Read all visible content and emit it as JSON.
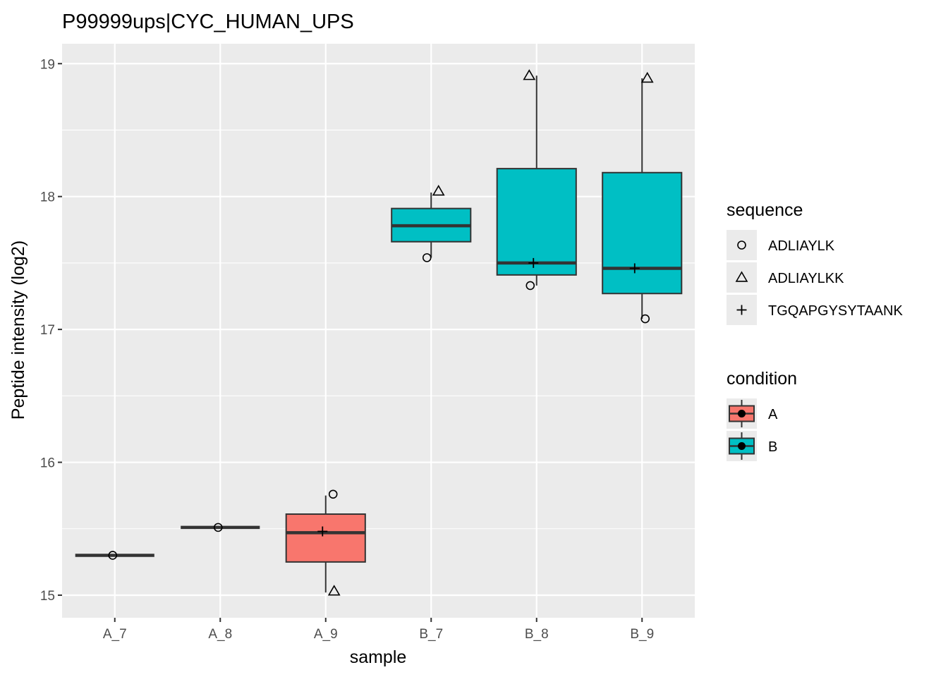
{
  "chart_data": {
    "type": "boxplot",
    "title": "P99999ups|CYC_HUMAN_UPS",
    "xlabel": "sample",
    "ylabel": "Peptide intensity (log2)",
    "categories": [
      "A_7",
      "A_8",
      "A_9",
      "B_7",
      "B_8",
      "B_9"
    ],
    "ylim": [
      14.83,
      19.15
    ],
    "yticks": [
      15,
      16,
      17,
      18,
      19
    ],
    "grid": true,
    "legend_position": "right",
    "boxes": [
      {
        "sample": "A_7",
        "condition": "A",
        "min": 15.3,
        "q1": 15.3,
        "median": 15.3,
        "q3": 15.3,
        "max": 15.3
      },
      {
        "sample": "A_8",
        "condition": "A",
        "min": 15.51,
        "q1": 15.51,
        "median": 15.51,
        "q3": 15.51,
        "max": 15.51
      },
      {
        "sample": "A_9",
        "condition": "A",
        "min": 15.02,
        "q1": 15.25,
        "median": 15.47,
        "q3": 15.61,
        "max": 15.75
      },
      {
        "sample": "B_7",
        "condition": "B",
        "min": 17.54,
        "q1": 17.66,
        "median": 17.78,
        "q3": 17.91,
        "max": 18.03
      },
      {
        "sample": "B_8",
        "condition": "B",
        "min": 17.33,
        "q1": 17.41,
        "median": 17.5,
        "q3": 18.21,
        "max": 18.91
      },
      {
        "sample": "B_9",
        "condition": "B",
        "min": 17.08,
        "q1": 17.27,
        "median": 17.46,
        "q3": 18.18,
        "max": 18.89
      }
    ],
    "points": [
      {
        "sample": "A_7",
        "sequence": "ADLIAYLK",
        "value": 15.3,
        "dx": -0.02
      },
      {
        "sample": "A_8",
        "sequence": "ADLIAYLK",
        "value": 15.51,
        "dx": -0.02
      },
      {
        "sample": "A_9",
        "sequence": "ADLIAYLK",
        "value": 15.76,
        "dx": 0.07
      },
      {
        "sample": "A_9",
        "sequence": "ADLIAYLKK",
        "value": 15.03,
        "dx": 0.08
      },
      {
        "sample": "A_9",
        "sequence": "TGQAPGYSYTAANK",
        "value": 15.48,
        "dx": -0.03
      },
      {
        "sample": "B_7",
        "sequence": "ADLIAYLK",
        "value": 17.54,
        "dx": -0.04
      },
      {
        "sample": "B_7",
        "sequence": "ADLIAYLKK",
        "value": 18.04,
        "dx": 0.07
      },
      {
        "sample": "B_8",
        "sequence": "ADLIAYLK",
        "value": 17.33,
        "dx": -0.06
      },
      {
        "sample": "B_8",
        "sequence": "ADLIAYLKK",
        "value": 18.91,
        "dx": -0.07
      },
      {
        "sample": "B_8",
        "sequence": "TGQAPGYSYTAANK",
        "value": 17.5,
        "dx": -0.03
      },
      {
        "sample": "B_9",
        "sequence": "ADLIAYLK",
        "value": 17.08,
        "dx": 0.03
      },
      {
        "sample": "B_9",
        "sequence": "ADLIAYLKK",
        "value": 18.89,
        "dx": 0.05
      },
      {
        "sample": "B_9",
        "sequence": "TGQAPGYSYTAANK",
        "value": 17.46,
        "dx": -0.07
      }
    ],
    "legend_sequence": {
      "title": "sequence",
      "items": [
        {
          "label": "ADLIAYLK",
          "shape": "circle"
        },
        {
          "label": "ADLIAYLKK",
          "shape": "triangle"
        },
        {
          "label": "TGQAPGYSYTAANK",
          "shape": "plus"
        }
      ]
    },
    "legend_condition": {
      "title": "condition",
      "items": [
        {
          "label": "A",
          "color": "#F8766D"
        },
        {
          "label": "B",
          "color": "#00BFC4"
        }
      ]
    },
    "colors": {
      "panel_bg": "#EBEBEB",
      "grid": "#FFFFFF",
      "A": "#F8766D",
      "B": "#00BFC4"
    }
  }
}
